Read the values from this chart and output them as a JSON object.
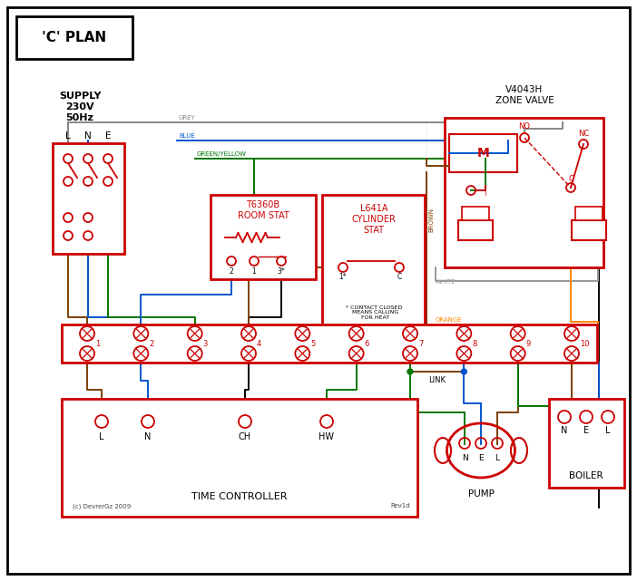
{
  "title": "'C' PLAN",
  "bg_color": "#ffffff",
  "red": "#cc0000",
  "blue": "#0055cc",
  "green": "#007700",
  "grey": "#888888",
  "brown": "#7B3F00",
  "orange": "#FF8800",
  "black": "#000000",
  "dk_red": "#cc0000",
  "supply_label": "SUPPLY\n230V\n50Hz",
  "room_stat_title": "T6360B\nROOM STAT",
  "cylinder_stat_title": "L641A\nCYLINDER\nSTAT",
  "zone_valve_title": "V4043H\nZONE VALVE",
  "terminal_nums": [
    "1",
    "2",
    "3",
    "4",
    "5",
    "6",
    "7",
    "8",
    "9",
    "10"
  ],
  "time_controller_label": "TIME CONTROLLER",
  "pump_label": "PUMP",
  "boiler_label": "BOILER",
  "link_label": "LINK",
  "wire_grey": "GREY",
  "wire_blue": "BLUE",
  "wire_gy": "GREEN/YELLOW",
  "wire_brown": "BROWN",
  "wire_white": "WHITE",
  "wire_orange": "ORANGE",
  "footnote": "* CONTACT CLOSED\n  MEANS CALLING\n  FOR HEAT",
  "copyright": "(c) DevrerGz 2009",
  "rev": "Rev1d"
}
